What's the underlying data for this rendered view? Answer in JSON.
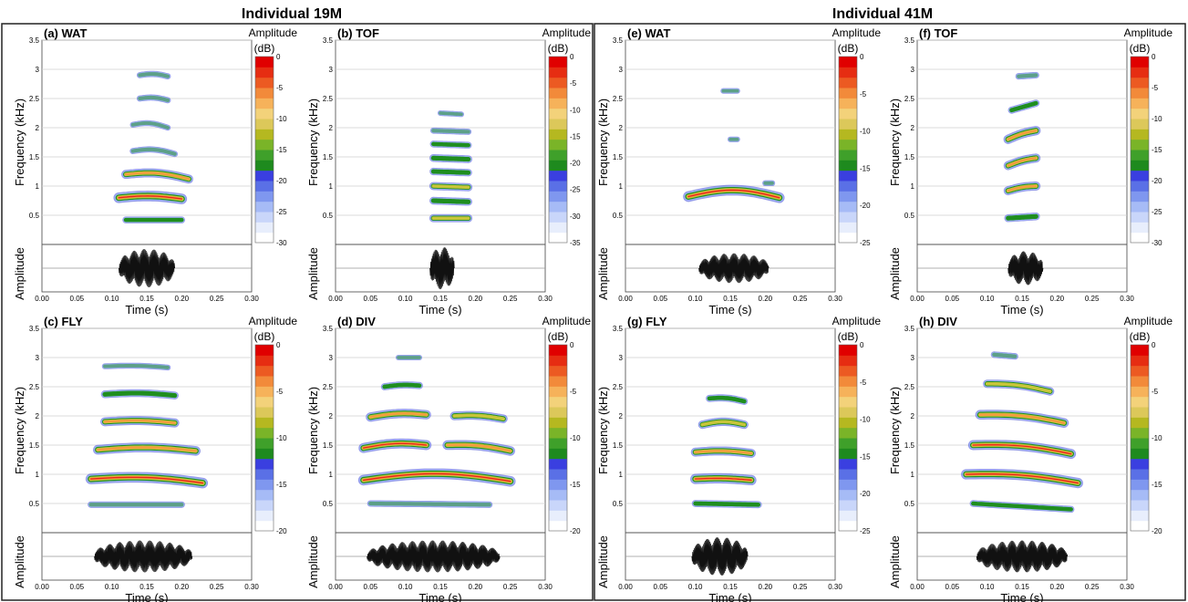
{
  "groups": [
    {
      "title": "Individual 19M"
    },
    {
      "title": "Individual 41M"
    }
  ],
  "chart_data": [
    {
      "id": "a",
      "type": "heatmap",
      "panel_label": "(a) WAT",
      "xlabel": "Time (s)",
      "ylabel": "Frequency (kHz)",
      "amp_label": "Amplitude",
      "xlim": [
        0,
        0.3
      ],
      "ylim": [
        0,
        3.5
      ],
      "x_ticks": [
        "0.00",
        "0.05",
        "0.10",
        "0.15",
        "0.20",
        "0.25",
        "0.30"
      ],
      "y_ticks": [
        "0.5",
        "1",
        "1.5",
        "2",
        "2.5",
        "3",
        "3.5"
      ],
      "colorbar": {
        "title": "Amplitude",
        "unit": "(dB)",
        "range": [
          -30,
          0
        ],
        "ticks": [
          "0",
          "-5",
          "-10",
          "-15",
          "-20",
          "-25",
          "-30"
        ]
      },
      "harmonics": [
        {
          "t0": 0.11,
          "t1": 0.2,
          "f0": 0.8,
          "f1": 0.78,
          "curv": 0.04,
          "level": 0.95
        },
        {
          "t0": 0.12,
          "t1": 0.21,
          "f0": 1.2,
          "f1": 1.12,
          "curv": 0.06,
          "level": 0.7
        },
        {
          "t0": 0.12,
          "t1": 0.2,
          "f0": 0.42,
          "f1": 0.42,
          "curv": 0.0,
          "level": 0.35
        },
        {
          "t0": 0.13,
          "t1": 0.19,
          "f0": 1.6,
          "f1": 1.55,
          "curv": 0.05,
          "level": 0.25
        },
        {
          "t0": 0.13,
          "t1": 0.18,
          "f0": 2.05,
          "f1": 2.0,
          "curv": 0.05,
          "level": 0.2
        },
        {
          "t0": 0.14,
          "t1": 0.18,
          "f0": 2.5,
          "f1": 2.47,
          "curv": 0.03,
          "level": 0.25
        },
        {
          "t0": 0.14,
          "t1": 0.18,
          "f0": 2.9,
          "f1": 2.88,
          "curv": 0.03,
          "level": 0.25
        }
      ],
      "waveform": {
        "t0": 0.11,
        "t1": 0.19,
        "amp": 0.9
      }
    },
    {
      "id": "b",
      "type": "heatmap",
      "panel_label": "(b) TOF",
      "xlabel": "Time (s)",
      "ylabel": "Frequency (kHz)",
      "amp_label": "Amplitude",
      "xlim": [
        0,
        0.3
      ],
      "ylim": [
        0,
        3.5
      ],
      "x_ticks": [
        "0.00",
        "0.05",
        "0.10",
        "0.15",
        "0.20",
        "0.25",
        "0.30"
      ],
      "y_ticks": [
        "0.5",
        "1",
        "1.5",
        "2",
        "2.5",
        "3",
        "3.5"
      ],
      "colorbar": {
        "title": "Amplitude",
        "unit": "(dB)",
        "range": [
          -35,
          0
        ],
        "ticks": [
          "0",
          "-5",
          "-10",
          "-15",
          "-20",
          "-25",
          "-30",
          "-35"
        ]
      },
      "harmonics": [
        {
          "t0": 0.14,
          "t1": 0.19,
          "f0": 0.45,
          "f1": 0.45,
          "curv": 0.0,
          "level": 0.55
        },
        {
          "t0": 0.14,
          "t1": 0.19,
          "f0": 0.75,
          "f1": 0.73,
          "curv": 0.0,
          "level": 0.5
        },
        {
          "t0": 0.14,
          "t1": 0.19,
          "f0": 1.0,
          "f1": 0.98,
          "curv": 0.0,
          "level": 0.55
        },
        {
          "t0": 0.14,
          "t1": 0.19,
          "f0": 1.25,
          "f1": 1.23,
          "curv": 0.0,
          "level": 0.45
        },
        {
          "t0": 0.14,
          "t1": 0.19,
          "f0": 1.48,
          "f1": 1.46,
          "curv": 0.0,
          "level": 0.5
        },
        {
          "t0": 0.14,
          "t1": 0.19,
          "f0": 1.72,
          "f1": 1.7,
          "curv": 0.0,
          "level": 0.35
        },
        {
          "t0": 0.14,
          "t1": 0.19,
          "f0": 1.95,
          "f1": 1.93,
          "curv": 0.0,
          "level": 0.25
        },
        {
          "t0": 0.15,
          "t1": 0.18,
          "f0": 2.25,
          "f1": 2.23,
          "curv": 0.0,
          "level": 0.15
        }
      ],
      "waveform": {
        "t0": 0.135,
        "t1": 0.17,
        "amp": 1.0
      }
    },
    {
      "id": "c",
      "type": "heatmap",
      "panel_label": "(c) FLY",
      "xlabel": "Time (s)",
      "ylabel": "Frequency (kHz)",
      "amp_label": "Amplitude",
      "xlim": [
        0,
        0.3
      ],
      "ylim": [
        0,
        3.5
      ],
      "x_ticks": [
        "0.00",
        "0.05",
        "0.10",
        "0.15",
        "0.20",
        "0.25",
        "0.30"
      ],
      "y_ticks": [
        "0.5",
        "1",
        "1.5",
        "2",
        "2.5",
        "3",
        "3.5"
      ],
      "colorbar": {
        "title": "Amplitude",
        "unit": "(dB)",
        "range": [
          -20,
          0
        ],
        "ticks": [
          "0",
          "-5",
          "-10",
          "-15",
          "-20"
        ]
      },
      "harmonics": [
        {
          "t0": 0.07,
          "t1": 0.23,
          "f0": 0.92,
          "f1": 0.85,
          "curv": 0.06,
          "level": 0.95
        },
        {
          "t0": 0.08,
          "t1": 0.22,
          "f0": 1.42,
          "f1": 1.4,
          "curv": 0.05,
          "level": 0.8
        },
        {
          "t0": 0.09,
          "t1": 0.19,
          "f0": 1.9,
          "f1": 1.88,
          "curv": 0.03,
          "level": 0.7
        },
        {
          "t0": 0.09,
          "t1": 0.19,
          "f0": 2.37,
          "f1": 2.35,
          "curv": 0.03,
          "level": 0.5
        },
        {
          "t0": 0.09,
          "t1": 0.18,
          "f0": 2.85,
          "f1": 2.83,
          "curv": 0.02,
          "level": 0.2
        },
        {
          "t0": 0.07,
          "t1": 0.2,
          "f0": 0.48,
          "f1": 0.48,
          "curv": 0.0,
          "level": 0.3
        }
      ],
      "waveform": {
        "t0": 0.075,
        "t1": 0.215,
        "amp": 0.75
      }
    },
    {
      "id": "d",
      "type": "heatmap",
      "panel_label": "(d) DIV",
      "xlabel": "Time (s)",
      "ylabel": "Frequency (kHz)",
      "amp_label": "Amplitude",
      "xlim": [
        0,
        0.3
      ],
      "ylim": [
        0,
        3.5
      ],
      "x_ticks": [
        "0.00",
        "0.05",
        "0.10",
        "0.15",
        "0.20",
        "0.25",
        "0.30"
      ],
      "y_ticks": [
        "0.5",
        "1",
        "1.5",
        "2",
        "2.5",
        "3",
        "3.5"
      ],
      "colorbar": {
        "title": "Amplitude",
        "unit": "(dB)",
        "range": [
          -20,
          0
        ],
        "ticks": [
          "0",
          "-5",
          "-10",
          "-15",
          "-20"
        ]
      },
      "harmonics": [
        {
          "t0": 0.04,
          "t1": 0.25,
          "f0": 0.9,
          "f1": 0.88,
          "curv": 0.12,
          "level": 0.95
        },
        {
          "t0": 0.04,
          "t1": 0.13,
          "f0": 1.45,
          "f1": 1.5,
          "curv": 0.05,
          "level": 0.85
        },
        {
          "t0": 0.16,
          "t1": 0.25,
          "f0": 1.5,
          "f1": 1.4,
          "curv": 0.04,
          "level": 0.8
        },
        {
          "t0": 0.05,
          "t1": 0.13,
          "f0": 1.98,
          "f1": 2.02,
          "curv": 0.04,
          "level": 0.75
        },
        {
          "t0": 0.17,
          "t1": 0.24,
          "f0": 2.0,
          "f1": 1.95,
          "curv": 0.03,
          "level": 0.65
        },
        {
          "t0": 0.07,
          "t1": 0.12,
          "f0": 2.5,
          "f1": 2.52,
          "curv": 0.02,
          "level": 0.4
        },
        {
          "t0": 0.09,
          "t1": 0.12,
          "f0": 3.0,
          "f1": 3.0,
          "curv": 0.0,
          "level": 0.15
        },
        {
          "t0": 0.05,
          "t1": 0.22,
          "f0": 0.5,
          "f1": 0.48,
          "curv": 0.0,
          "level": 0.3
        }
      ],
      "waveform": {
        "t0": 0.045,
        "t1": 0.235,
        "amp": 0.75
      }
    },
    {
      "id": "e",
      "type": "heatmap",
      "panel_label": "(e) WAT",
      "xlabel": "Time (s)",
      "ylabel": "Frequency (kHz)",
      "amp_label": "Amplitude",
      "xlim": [
        0,
        0.3
      ],
      "ylim": [
        0,
        3.5
      ],
      "x_ticks": [
        "0.00",
        "0.05",
        "0.10",
        "0.15",
        "0.20",
        "0.25",
        "0.30"
      ],
      "y_ticks": [
        "0.5",
        "1",
        "1.5",
        "2",
        "2.5",
        "3",
        "3.5"
      ],
      "colorbar": {
        "title": "Amplitude",
        "unit": "(dB)",
        "range": [
          -25,
          0
        ],
        "ticks": [
          "0",
          "-5",
          "-10",
          "-15",
          "-20",
          "-25"
        ]
      },
      "harmonics": [
        {
          "t0": 0.09,
          "t1": 0.22,
          "f0": 0.82,
          "f1": 0.8,
          "curv": 0.12,
          "level": 0.95
        },
        {
          "t0": 0.15,
          "t1": 0.16,
          "f0": 1.8,
          "f1": 1.8,
          "curv": 0.0,
          "level": 0.15
        },
        {
          "t0": 0.14,
          "t1": 0.16,
          "f0": 2.63,
          "f1": 2.63,
          "curv": 0.0,
          "level": 0.15
        },
        {
          "t0": 0.2,
          "t1": 0.21,
          "f0": 1.05,
          "f1": 1.05,
          "curv": 0.0,
          "level": 0.2
        }
      ],
      "waveform": {
        "t0": 0.105,
        "t1": 0.205,
        "amp": 0.7
      }
    },
    {
      "id": "f",
      "type": "heatmap",
      "panel_label": "(f) TOF",
      "xlabel": "Time (s)",
      "ylabel": "Frequency (kHz)",
      "amp_label": "Amplitude",
      "xlim": [
        0,
        0.3
      ],
      "ylim": [
        0,
        3.5
      ],
      "x_ticks": [
        "0.00",
        "0.05",
        "0.10",
        "0.15",
        "0.20",
        "0.25",
        "0.30"
      ],
      "y_ticks": [
        "0.5",
        "1",
        "1.5",
        "2",
        "2.5",
        "3",
        "3.5"
      ],
      "colorbar": {
        "title": "Amplitude",
        "unit": "(dB)",
        "range": [
          -30,
          0
        ],
        "ticks": [
          "0",
          "-5",
          "-10",
          "-15",
          "-20",
          "-25",
          "-30"
        ]
      },
      "harmonics": [
        {
          "t0": 0.13,
          "t1": 0.17,
          "f0": 0.45,
          "f1": 0.48,
          "curv": 0.0,
          "level": 0.5
        },
        {
          "t0": 0.13,
          "t1": 0.17,
          "f0": 0.92,
          "f1": 1.0,
          "curv": 0.02,
          "level": 0.7
        },
        {
          "t0": 0.13,
          "t1": 0.17,
          "f0": 1.35,
          "f1": 1.48,
          "curv": 0.02,
          "level": 0.7
        },
        {
          "t0": 0.13,
          "t1": 0.17,
          "f0": 1.8,
          "f1": 1.95,
          "curv": 0.02,
          "level": 0.75
        },
        {
          "t0": 0.135,
          "t1": 0.17,
          "f0": 2.3,
          "f1": 2.42,
          "curv": 0.0,
          "level": 0.4
        },
        {
          "t0": 0.145,
          "t1": 0.17,
          "f0": 2.88,
          "f1": 2.9,
          "curv": 0.0,
          "level": 0.3
        }
      ],
      "waveform": {
        "t0": 0.13,
        "t1": 0.18,
        "amp": 0.8
      }
    },
    {
      "id": "g",
      "type": "heatmap",
      "panel_label": "(g) FLY",
      "xlabel": "Time (s)",
      "ylabel": "Frequency (kHz)",
      "amp_label": "Amplitude",
      "xlim": [
        0,
        0.3
      ],
      "ylim": [
        0,
        3.5
      ],
      "x_ticks": [
        "0.00",
        "0.05",
        "0.10",
        "0.15",
        "0.20",
        "0.25",
        "0.30"
      ],
      "y_ticks": [
        "0.5",
        "1",
        "1.5",
        "2",
        "2.5",
        "3",
        "3.5"
      ],
      "colorbar": {
        "title": "Amplitude",
        "unit": "(dB)",
        "range": [
          -25,
          0
        ],
        "ticks": [
          "0",
          "-5",
          "-10",
          "-15",
          "-20",
          "-25"
        ]
      },
      "harmonics": [
        {
          "t0": 0.1,
          "t1": 0.18,
          "f0": 0.92,
          "f1": 0.9,
          "curv": 0.02,
          "level": 0.9
        },
        {
          "t0": 0.1,
          "t1": 0.18,
          "f0": 1.38,
          "f1": 1.36,
          "curv": 0.03,
          "level": 0.7
        },
        {
          "t0": 0.11,
          "t1": 0.17,
          "f0": 1.85,
          "f1": 1.85,
          "curv": 0.05,
          "level": 0.6
        },
        {
          "t0": 0.12,
          "t1": 0.17,
          "f0": 2.3,
          "f1": 2.25,
          "curv": 0.03,
          "level": 0.4
        },
        {
          "t0": 0.1,
          "t1": 0.19,
          "f0": 0.5,
          "f1": 0.48,
          "curv": 0.0,
          "level": 0.4
        }
      ],
      "waveform": {
        "t0": 0.095,
        "t1": 0.175,
        "amp": 0.9
      }
    },
    {
      "id": "h",
      "type": "heatmap",
      "panel_label": "(h) DIV",
      "xlabel": "Time (s)",
      "ylabel": "Frequency (kHz)",
      "amp_label": "Amplitude",
      "xlim": [
        0,
        0.3
      ],
      "ylim": [
        0,
        3.5
      ],
      "x_ticks": [
        "0.00",
        "0.05",
        "0.10",
        "0.15",
        "0.20",
        "0.25",
        "0.30"
      ],
      "y_ticks": [
        "0.5",
        "1",
        "1.5",
        "2",
        "2.5",
        "3",
        "3.5"
      ],
      "colorbar": {
        "title": "Amplitude",
        "unit": "(dB)",
        "range": [
          -20,
          0
        ],
        "ticks": [
          "0",
          "-5",
          "-10",
          "-15",
          "-20"
        ]
      },
      "harmonics": [
        {
          "t0": 0.07,
          "t1": 0.23,
          "f0": 1.0,
          "f1": 0.85,
          "curv": 0.06,
          "level": 0.9
        },
        {
          "t0": 0.08,
          "t1": 0.22,
          "f0": 1.5,
          "f1": 1.35,
          "curv": 0.06,
          "level": 0.85
        },
        {
          "t0": 0.09,
          "t1": 0.21,
          "f0": 2.02,
          "f1": 1.88,
          "curv": 0.05,
          "level": 0.8
        },
        {
          "t0": 0.1,
          "t1": 0.19,
          "f0": 2.55,
          "f1": 2.42,
          "curv": 0.04,
          "level": 0.6
        },
        {
          "t0": 0.11,
          "t1": 0.14,
          "f0": 3.05,
          "f1": 3.02,
          "curv": 0.0,
          "level": 0.3
        },
        {
          "t0": 0.08,
          "t1": 0.22,
          "f0": 0.5,
          "f1": 0.4,
          "curv": 0.0,
          "level": 0.35
        }
      ],
      "waveform": {
        "t0": 0.085,
        "t1": 0.215,
        "amp": 0.75
      }
    }
  ]
}
